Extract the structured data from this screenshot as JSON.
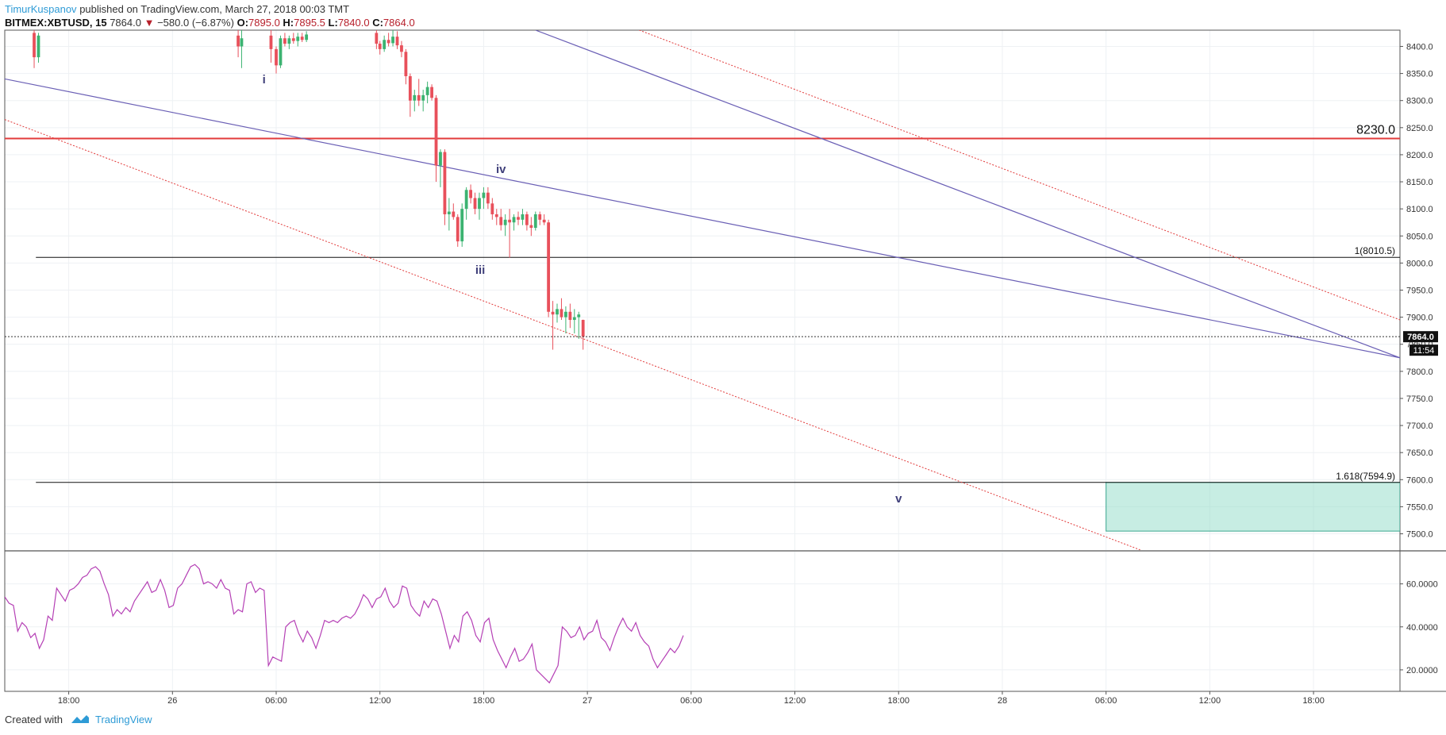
{
  "header": {
    "author": "TimurKuspanov",
    "published": "published on TradingView.com, March 27, 2018 00:03 TMT",
    "symbol": "BITMEX:XBTUSD, 15",
    "last": "7864.0",
    "change_arrow": "▼",
    "change": "−580.0 (−6.87%)",
    "o_label": "O:",
    "o_value": "7895.0",
    "h_label": "H:",
    "h_value": "7895.5",
    "l_label": "L:",
    "l_value": "7840.0",
    "c_label": "C:",
    "c_value": "7864.0"
  },
  "footer": {
    "created_with": "Created with",
    "brand": "TradingView"
  },
  "colors": {
    "up": "#3cb371",
    "down": "#e8505b",
    "channel": "#6a5fb5",
    "channel_dotted": "#e23b3b",
    "resistance": "#e23b3b",
    "rsi": "#b540b5",
    "target_zone": "#8fdcc8",
    "level_line": "#111111"
  },
  "chart_data": [
    {
      "type": "candlestick",
      "symbol": "BITMEX:XBTUSD",
      "interval": "15",
      "y_axis_ticks": [
        "7500.0",
        "7550.0",
        "7600.0",
        "7650.0",
        "7700.0",
        "7750.0",
        "7800.0",
        "7850.0",
        "7900.0",
        "7950.0",
        "8000.0",
        "8050.0",
        "8100.0",
        "8150.0",
        "8200.0",
        "8250.0",
        "8300.0",
        "8350.0",
        "8400.0"
      ],
      "ylim": [
        7470,
        8430
      ],
      "x_axis_ticks": [
        "18:00",
        "26",
        "06:00",
        "12:00",
        "18:00",
        "27",
        "06:00",
        "12:00",
        "18:00",
        "28",
        "06:00",
        "12:00",
        "18:00"
      ],
      "x_tick_hours": [
        18,
        24,
        30,
        36,
        42,
        48,
        54,
        60,
        66,
        72,
        78,
        84,
        90
      ],
      "xlim_hours": [
        14.3,
        95.0
      ],
      "current_price_label": "7864.0",
      "countdown_label": "11:54",
      "current_price": 7864,
      "horizontal_levels": [
        {
          "label": "8230.0",
          "value": 8230,
          "style": "solid-red"
        },
        {
          "label": "1(8010.5)",
          "value": 8010.5,
          "style": "solid-black"
        },
        {
          "label": "1.618(7594.9)",
          "value": 7594.9,
          "style": "solid-black"
        }
      ],
      "target_zone": {
        "from_hour": 78,
        "to_hour": 95,
        "top": 7594.9,
        "bottom": 7505
      },
      "wave_labels": [
        {
          "text": "i",
          "hour": 29.3,
          "price": 8332
        },
        {
          "text": "iv",
          "hour": 43.0,
          "price": 8166
        },
        {
          "text": "iii",
          "hour": 41.8,
          "price": 7980
        },
        {
          "text": "v",
          "hour": 66.0,
          "price": 7558
        }
      ],
      "trend_lines": [
        {
          "style": "solid",
          "from": [
            14.3,
            8340
          ],
          "to": [
            95.0,
            7825
          ]
        },
        {
          "style": "dotted",
          "from": [
            14.3,
            8265
          ],
          "to": [
            80.0,
            7470
          ]
        },
        {
          "style": "solid",
          "from": [
            45.0,
            8430
          ],
          "to": [
            95.0,
            7825
          ]
        },
        {
          "style": "dotted",
          "from": [
            51.0,
            8430
          ],
          "to": [
            95.0,
            7895
          ]
        }
      ],
      "candles": [
        [
          16.0,
          8425,
          8440,
          8360,
          8380
        ],
        [
          16.25,
          8380,
          8425,
          8370,
          8420
        ],
        [
          27.8,
          8420,
          8430,
          8380,
          8400
        ],
        [
          28.0,
          8400,
          8430,
          8360,
          8415
        ],
        [
          29.7,
          8420,
          8430,
          8370,
          8395
        ],
        [
          30.0,
          8395,
          8400,
          8350,
          8365
        ],
        [
          30.25,
          8365,
          8420,
          8360,
          8415
        ],
        [
          30.5,
          8415,
          8425,
          8400,
          8405
        ],
        [
          30.75,
          8405,
          8420,
          8395,
          8415
        ],
        [
          31.0,
          8415,
          8425,
          8405,
          8410
        ],
        [
          31.25,
          8410,
          8425,
          8400,
          8418
        ],
        [
          31.5,
          8418,
          8425,
          8408,
          8412
        ],
        [
          31.75,
          8412,
          8428,
          8408,
          8422
        ],
        [
          35.8,
          8425,
          8430,
          8395,
          8405
        ],
        [
          36.0,
          8405,
          8410,
          8385,
          8395
        ],
        [
          36.25,
          8395,
          8420,
          8390,
          8412
        ],
        [
          36.5,
          8412,
          8425,
          8400,
          8406
        ],
        [
          36.75,
          8406,
          8430,
          8400,
          8418
        ],
        [
          37.0,
          8418,
          8428,
          8395,
          8402
        ],
        [
          37.25,
          8402,
          8410,
          8380,
          8390
        ],
        [
          37.5,
          8390,
          8395,
          8330,
          8345
        ],
        [
          37.75,
          8345,
          8350,
          8270,
          8300
        ],
        [
          38.0,
          8300,
          8320,
          8280,
          8310
        ],
        [
          38.25,
          8310,
          8340,
          8290,
          8300
        ],
        [
          38.5,
          8300,
          8320,
          8280,
          8310
        ],
        [
          38.75,
          8310,
          8335,
          8295,
          8325
        ],
        [
          39.0,
          8325,
          8330,
          8300,
          8305
        ],
        [
          39.25,
          8305,
          8310,
          8150,
          8180
        ],
        [
          39.5,
          8180,
          8210,
          8140,
          8205
        ],
        [
          39.75,
          8205,
          8210,
          8070,
          8090
        ],
        [
          40.0,
          8090,
          8120,
          8060,
          8095
        ],
        [
          40.25,
          8095,
          8110,
          8080,
          8085
        ],
        [
          40.5,
          8085,
          8090,
          8030,
          8040
        ],
        [
          40.75,
          8040,
          8110,
          8030,
          8100
        ],
        [
          41.0,
          8100,
          8140,
          8080,
          8135
        ],
        [
          41.25,
          8135,
          8145,
          8110,
          8120
        ],
        [
          41.5,
          8120,
          8130,
          8090,
          8100
        ],
        [
          41.75,
          8100,
          8130,
          8080,
          8120
        ],
        [
          42.0,
          8120,
          8140,
          8100,
          8130
        ],
        [
          42.25,
          8130,
          8140,
          8100,
          8110
        ],
        [
          42.5,
          8110,
          8120,
          8080,
          8090
        ],
        [
          42.75,
          8090,
          8100,
          8070,
          8085
        ],
        [
          43.0,
          8085,
          8100,
          8060,
          8070
        ],
        [
          43.25,
          8070,
          8090,
          8050,
          8080
        ],
        [
          43.5,
          8080,
          8100,
          8010,
          8075
        ],
        [
          43.75,
          8075,
          8090,
          8060,
          8085
        ],
        [
          44.0,
          8085,
          8095,
          8070,
          8080
        ],
        [
          44.25,
          8080,
          8100,
          8070,
          8090
        ],
        [
          44.5,
          8090,
          8095,
          8060,
          8070
        ],
        [
          44.75,
          8070,
          8085,
          8050,
          8065
        ],
        [
          45.0,
          8065,
          8095,
          8060,
          8090
        ],
        [
          45.25,
          8090,
          8095,
          8070,
          8080
        ],
        [
          45.5,
          8080,
          8090,
          8070,
          8075
        ],
        [
          45.75,
          8075,
          8080,
          7900,
          7910
        ],
        [
          46.0,
          7910,
          7930,
          7840,
          7905
        ],
        [
          46.25,
          7905,
          7925,
          7890,
          7915
        ],
        [
          46.5,
          7915,
          7935,
          7895,
          7900
        ],
        [
          46.75,
          7900,
          7920,
          7870,
          7910
        ],
        [
          47.0,
          7910,
          7925,
          7880,
          7895
        ],
        [
          47.25,
          7895,
          7915,
          7870,
          7900
        ],
        [
          47.5,
          7900,
          7910,
          7860,
          7905
        ],
        [
          47.75,
          7895,
          7895.5,
          7840,
          7864
        ]
      ]
    },
    {
      "type": "line",
      "name": "RSI",
      "y_axis_ticks": [
        "20.0000",
        "40.0000",
        "60.0000"
      ],
      "ylim": [
        10,
        75
      ],
      "x_start_hour": 14.3,
      "x_step_hours": 0.25,
      "values": [
        54,
        51,
        50,
        38,
        42,
        40,
        35,
        37,
        30,
        34,
        45,
        43,
        58,
        55,
        52,
        57,
        58,
        60,
        63,
        64,
        67,
        68,
        66,
        60,
        55,
        45,
        48,
        46,
        49,
        47,
        52,
        55,
        58,
        61,
        56,
        57,
        62,
        57,
        49,
        50,
        58,
        60,
        64,
        68,
        69,
        67,
        60,
        61,
        60,
        58,
        62,
        58,
        57,
        46,
        48,
        47,
        60,
        61,
        56,
        58,
        57,
        22,
        26,
        25,
        24,
        40,
        42,
        43,
        37,
        33,
        38,
        35,
        30,
        36,
        43,
        42,
        43,
        42,
        44,
        45,
        44,
        46,
        50,
        55,
        53,
        49,
        53,
        54,
        58,
        52,
        49,
        51,
        59,
        58,
        50,
        47,
        45,
        52,
        49,
        53,
        52,
        46,
        38,
        30,
        36,
        33,
        45,
        47,
        43,
        36,
        33,
        42,
        44,
        34,
        29,
        25,
        21,
        26,
        30,
        24,
        25,
        28,
        32,
        20,
        18,
        16,
        14,
        18,
        22,
        40,
        38,
        35,
        36,
        40,
        34,
        37,
        38,
        43,
        35,
        33,
        29,
        35,
        40,
        44,
        40,
        38,
        42,
        36,
        33,
        31,
        25,
        21,
        24,
        27,
        30,
        28,
        31,
        36
      ]
    }
  ]
}
